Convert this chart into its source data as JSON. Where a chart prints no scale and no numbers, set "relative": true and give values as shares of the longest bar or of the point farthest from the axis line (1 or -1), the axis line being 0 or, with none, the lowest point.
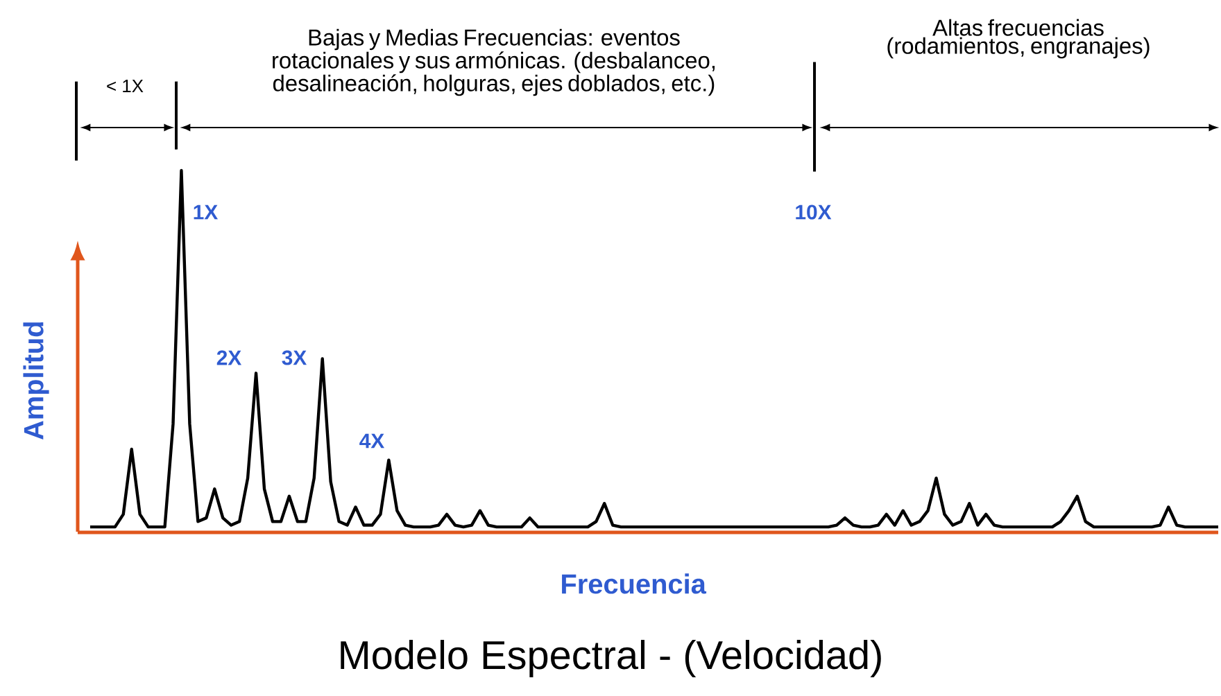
{
  "chart_data": {
    "type": "line",
    "relative": true,
    "title": "Modelo Espectral - (Velocidad)",
    "xlabel": "Frecuencia",
    "ylabel": "Amplitud",
    "color": "#000000",
    "categories": [
      null,
      null,
      null,
      null,
      null,
      null,
      null,
      null,
      null,
      null,
      null,
      null,
      null,
      null,
      null,
      null,
      null,
      null,
      null,
      null,
      null,
      null,
      null,
      null,
      null,
      null,
      null,
      null,
      null,
      null,
      null,
      null,
      null,
      null,
      null,
      null,
      null,
      null,
      null,
      null,
      null,
      null,
      null,
      null,
      null,
      null,
      null,
      null,
      null,
      null,
      null,
      null,
      null,
      null,
      null,
      null,
      null,
      null,
      null,
      null,
      null,
      null,
      null,
      null,
      null,
      null,
      null,
      null,
      null,
      null,
      null,
      null,
      null,
      null,
      null,
      null,
      null,
      null,
      null,
      null,
      null,
      null,
      null,
      null,
      null,
      null,
      null,
      null,
      null,
      null,
      null,
      null,
      null,
      null,
      null,
      null,
      null,
      null,
      null,
      null,
      null,
      null,
      null,
      null,
      null,
      null,
      null,
      null,
      null,
      null,
      null,
      null,
      null,
      null,
      null,
      null,
      null,
      null,
      null,
      null,
      null,
      null,
      null,
      null,
      null,
      null,
      null,
      null,
      null,
      null,
      null,
      null,
      null,
      null,
      null,
      null,
      null
    ],
    "values": [
      0.015,
      0.015,
      0.015,
      0.015,
      0.05,
      0.23,
      0.05,
      0.015,
      0.015,
      0.015,
      0.3,
      1,
      0.3,
      0.03,
      0.04,
      0.12,
      0.04,
      0.02,
      0.03,
      0.15,
      0.44,
      0.12,
      0.03,
      0.03,
      0.1,
      0.03,
      0.03,
      0.15,
      0.48,
      0.14,
      0.03,
      0.02,
      0.07,
      0.02,
      0.02,
      0.05,
      0.2,
      0.06,
      0.02,
      0.015,
      0.015,
      0.015,
      0.02,
      0.05,
      0.02,
      0.015,
      0.02,
      0.06,
      0.02,
      0.015,
      0.015,
      0.015,
      0.015,
      0.04,
      0.015,
      0.015,
      0.015,
      0.015,
      0.015,
      0.015,
      0.015,
      0.03,
      0.08,
      0.02,
      0.015,
      0.015,
      0.015,
      0.015,
      0.015,
      0.015,
      0.015,
      0.015,
      0.015,
      0.015,
      0.015,
      0.015,
      0.015,
      0.015,
      0.015,
      0.015,
      0.015,
      0.015,
      0.015,
      0.015,
      0.015,
      0.015,
      0.015,
      0.015,
      0.015,
      0.015,
      0.02,
      0.04,
      0.02,
      0.015,
      0.015,
      0.02,
      0.05,
      0.02,
      0.06,
      0.02,
      0.03,
      0.06,
      0.15,
      0.05,
      0.02,
      0.03,
      0.08,
      0.02,
      0.05,
      0.02,
      0.015,
      0.015,
      0.015,
      0.015,
      0.015,
      0.015,
      0.015,
      0.03,
      0.06,
      0.1,
      0.03,
      0.015,
      0.015,
      0.015,
      0.015,
      0.015,
      0.015,
      0.015,
      0.015,
      0.02,
      0.07,
      0.02,
      0.015,
      0.015,
      0.015,
      0.015,
      0.015
    ],
    "annotations": [
      "< 1X",
      "Bajas y Medias Frecuencias: eventos rotacionales y sus armónicas. (desbalanceo, desalineación, holguras, ejes doblados, etc.)",
      "Altas frecuencias (rodamientos, engranajes)",
      "1X",
      "2X",
      "3X",
      "4X",
      "10X"
    ]
  }
}
